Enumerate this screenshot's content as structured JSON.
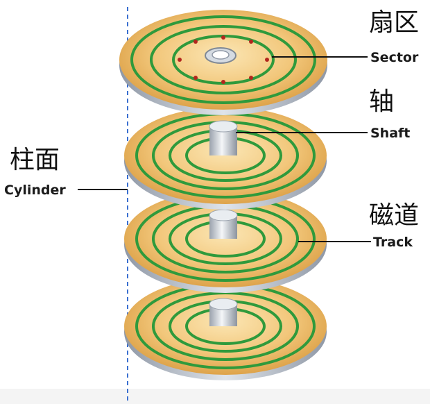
{
  "labels": {
    "sector": {
      "zh": "扇区",
      "en": "Sector"
    },
    "shaft": {
      "zh": "轴",
      "en": "Shaft"
    },
    "cylinder": {
      "zh": "柱面",
      "en": "Cylinder"
    },
    "track": {
      "zh": "磁道",
      "en": "Track"
    }
  },
  "colors": {
    "platter_center": "#f7d79a",
    "platter_edge": "#e0a64a",
    "platter_side": "#b7bfca",
    "track_ring": "#2f9a3c",
    "sector_dot": "#b3261e",
    "shaft": "#d8dde3",
    "cylinder_line": "#3a6fd0"
  },
  "platter_count": 4,
  "track_rings_per_platter": 4
}
